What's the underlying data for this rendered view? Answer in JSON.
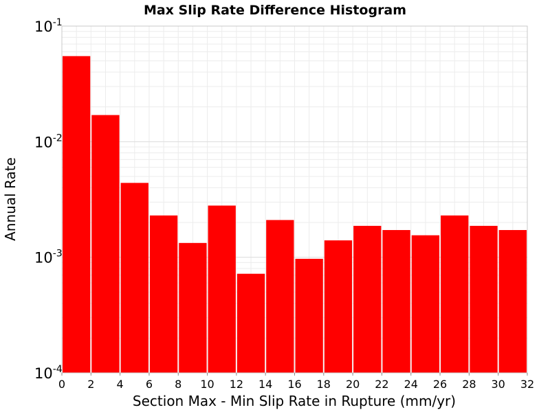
{
  "chart_data": {
    "type": "bar",
    "title": "Max Slip Rate Difference Histogram",
    "xlabel": "Section Max - Min Slip Rate in Rupture (mm/yr)",
    "ylabel": "Annual Rate",
    "xlim": [
      0,
      32
    ],
    "ylim": [
      0.0001,
      0.1
    ],
    "yscale": "log",
    "grid": true,
    "bar_color": "#ff0000",
    "bin_width": 2,
    "x_ticks": [
      "0",
      "2",
      "4",
      "6",
      "8",
      "10",
      "12",
      "14",
      "16",
      "18",
      "20",
      "22",
      "24",
      "26",
      "28",
      "30",
      "32"
    ],
    "y_ticks": [
      {
        "base": "10",
        "exp": "-4",
        "value": 0.0001
      },
      {
        "base": "10",
        "exp": "-3",
        "value": 0.001
      },
      {
        "base": "10",
        "exp": "-2",
        "value": 0.01
      },
      {
        "base": "10",
        "exp": "-1",
        "value": 0.1
      }
    ],
    "x": [
      1,
      3,
      5,
      7,
      9,
      11,
      13,
      15,
      17,
      19,
      21,
      23,
      25,
      27,
      29,
      31
    ],
    "values": [
      0.055,
      0.017,
      0.0044,
      0.0023,
      0.00133,
      0.0028,
      0.00072,
      0.0021,
      0.00097,
      0.0014,
      0.00187,
      0.00172,
      0.00155,
      0.0023,
      0.00187,
      0.00172
    ]
  }
}
